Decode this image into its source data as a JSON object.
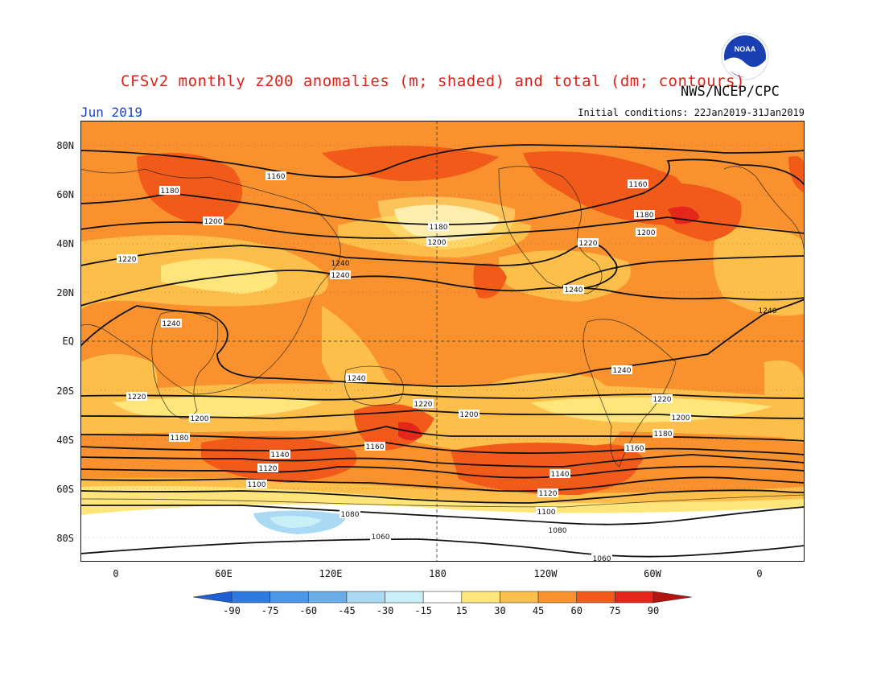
{
  "header": {
    "title": "CFSv2 monthly z200 anomalies (m; shaded) and total (dm; contours)",
    "agency": "NWS/NCEP/CPC",
    "month": "Jun 2019",
    "initial_conditions": "Initial conditions: 22Jan2019-31Jan2019",
    "logo_text": "NOAA"
  },
  "axes": {
    "lat_labels": [
      "80N",
      "60N",
      "40N",
      "20N",
      "EQ",
      "20S",
      "40S",
      "60S",
      "80S"
    ],
    "lon_labels": [
      "0",
      "60E",
      "120E",
      "180",
      "120W",
      "60W",
      "0"
    ]
  },
  "colorbar": {
    "labels": [
      "-90",
      "-75",
      "-60",
      "-45",
      "-30",
      "-15",
      "15",
      "30",
      "45",
      "60",
      "75",
      "90"
    ],
    "colors": [
      "#1f5fd6",
      "#2f7ae0",
      "#4a96e8",
      "#6aace8",
      "#a9d9f5",
      "#c9f0f7",
      "#ffffff",
      "#ffe57a",
      "#fdbf4a",
      "#f9922e",
      "#f25a1a",
      "#e5261a",
      "#b51512"
    ]
  },
  "contours": {
    "units": "dm",
    "labels": [
      "1160",
      "1180",
      "1200",
      "1220",
      "1240",
      "1240",
      "1240",
      "1220",
      "1200",
      "1180",
      "1160",
      "1140",
      "1120",
      "1100",
      "1080",
      "1060",
      "1060",
      "1160",
      "1180",
      "1200",
      "1220",
      "1240",
      "1220",
      "1200",
      "1180",
      "1160",
      "1140",
      "1120",
      "1100",
      "1080",
      "1240",
      "1180",
      "1200",
      "1200",
      "1220",
      "1240",
      "1240"
    ]
  },
  "anomaly_color_legend": {
    "white": "-15 to 15",
    "light_yellow": "15 to 30",
    "yellow_orange": "30 to 45",
    "orange": "45 to 60",
    "red_orange": "60 to 75",
    "red": "75 to 90"
  }
}
